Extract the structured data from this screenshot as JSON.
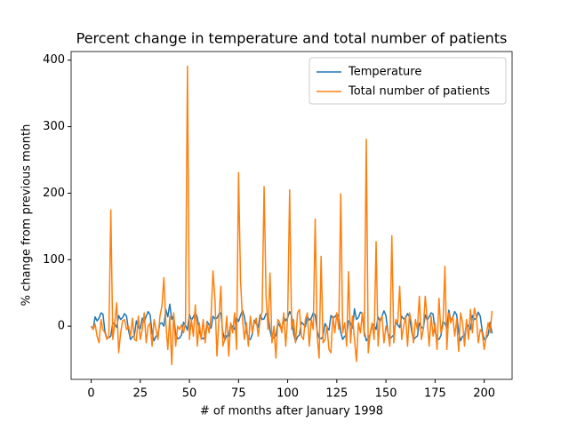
{
  "chart_data": {
    "type": "line",
    "title": "Percent change in temperature and total number of patients",
    "x_label": "# of months after January 1998",
    "y_label": "% change from previous month",
    "xlim": [
      -10.2,
      214.2
    ],
    "ylim": [
      -80,
      413
    ],
    "xticks": [
      0,
      25,
      50,
      75,
      100,
      125,
      150,
      175,
      200
    ],
    "yticks": [
      0,
      100,
      200,
      300,
      400
    ],
    "legend": "upper right",
    "x": [
      0,
      1,
      2,
      3,
      4,
      5,
      6,
      7,
      8,
      9,
      10,
      11,
      12,
      13,
      14,
      15,
      16,
      17,
      18,
      19,
      20,
      21,
      22,
      23,
      24,
      25,
      26,
      27,
      28,
      29,
      30,
      31,
      32,
      33,
      34,
      35,
      36,
      37,
      38,
      39,
      40,
      41,
      42,
      43,
      44,
      45,
      46,
      47,
      48,
      49,
      50,
      51,
      52,
      53,
      54,
      55,
      56,
      57,
      58,
      59,
      60,
      61,
      62,
      63,
      64,
      65,
      66,
      67,
      68,
      69,
      70,
      71,
      72,
      73,
      74,
      75,
      76,
      77,
      78,
      79,
      80,
      81,
      82,
      83,
      84,
      85,
      86,
      87,
      88,
      89,
      90,
      91,
      92,
      93,
      94,
      95,
      96,
      97,
      98,
      99,
      100,
      101,
      102,
      103,
      104,
      105,
      106,
      107,
      108,
      109,
      110,
      111,
      112,
      113,
      114,
      115,
      116,
      117,
      118,
      119,
      120,
      121,
      122,
      123,
      124,
      125,
      126,
      127,
      128,
      129,
      130,
      131,
      132,
      133,
      134,
      135,
      136,
      137,
      138,
      139,
      140,
      141,
      142,
      143,
      144,
      145,
      146,
      147,
      148,
      149,
      150,
      151,
      152,
      153,
      154,
      155,
      156,
      157,
      158,
      159,
      160,
      161,
      162,
      163,
      164,
      165,
      166,
      167,
      168,
      169,
      170,
      171,
      172,
      173,
      174,
      175,
      176,
      177,
      178,
      179,
      180,
      181,
      182,
      183,
      184,
      185,
      186,
      187,
      188,
      189,
      190,
      191,
      192,
      193,
      194,
      195,
      196,
      197,
      198,
      199,
      200,
      201,
      202,
      203,
      204
    ],
    "series": [
      {
        "name": "Temperature",
        "color": "#1f77b4",
        "values": [
          0,
          -5,
          14,
          8,
          12,
          20,
          18,
          -8,
          -18,
          -17,
          -15,
          5,
          3,
          -2,
          16,
          10,
          13,
          19,
          15,
          -6,
          -20,
          -16,
          -14,
          8,
          -2,
          -4,
          12,
          6,
          15,
          22,
          17,
          -10,
          -22,
          -15,
          -12,
          4,
          5,
          0,
          25,
          14,
          33,
          10,
          16,
          -12,
          -19,
          -18,
          -13,
          6,
          1,
          -6,
          18,
          9,
          14,
          21,
          13,
          -7,
          -17,
          -19,
          -16,
          7,
          2,
          -3,
          15,
          11,
          12,
          18,
          20,
          -9,
          -21,
          -14,
          -15,
          3,
          -1,
          -5,
          13,
          7,
          16,
          24,
          14,
          -8,
          -18,
          -20,
          -12,
          9,
          4,
          -2,
          17,
          10,
          11,
          19,
          18,
          -6,
          -19,
          -17,
          -14,
          5,
          0,
          -4,
          14,
          8,
          13,
          22,
          16,
          -11,
          -23,
          -16,
          -13,
          6,
          3,
          -1,
          15,
          9,
          12,
          20,
          17,
          -7,
          -18,
          -19,
          -15,
          4,
          -2,
          -6,
          16,
          12,
          14,
          18,
          15,
          -9,
          -20,
          -15,
          -14,
          8,
          5,
          -3,
          26,
          10,
          13,
          21,
          19,
          -8,
          -22,
          -18,
          -12,
          3,
          1,
          -5,
          14,
          7,
          15,
          23,
          16,
          -10,
          -19,
          -16,
          -13,
          6,
          2,
          -2,
          15,
          11,
          12,
          19,
          14,
          -6,
          -21,
          -17,
          -15,
          5,
          -1,
          -4,
          17,
          9,
          14,
          20,
          18,
          -8,
          -18,
          -20,
          -14,
          7,
          4,
          -3,
          24,
          8,
          13,
          22,
          17,
          -9,
          -22,
          -15,
          -16,
          4,
          0,
          -5,
          16,
          10,
          12,
          21,
          15,
          -7,
          -20,
          -18,
          -13,
          6,
          -11
        ]
      },
      {
        "name": "Total number of patients",
        "color": "#ff7f0e",
        "values": [
          0,
          -5,
          3,
          -15,
          -25,
          10,
          -5,
          -10,
          -20,
          -15,
          175,
          -20,
          5,
          35,
          -40,
          -10,
          8,
          10,
          -5,
          0,
          -15,
          12,
          -20,
          -22,
          15,
          -20,
          -5,
          20,
          -25,
          0,
          5,
          -30,
          10,
          -5,
          -20,
          15,
          30,
          73,
          5,
          -35,
          15,
          -58,
          20,
          -30,
          0,
          -5,
          2,
          -10,
          5,
          391,
          -20,
          10,
          -15,
          32,
          -30,
          5,
          -20,
          10,
          -25,
          5,
          -10,
          15,
          83,
          40,
          -45,
          10,
          60,
          -30,
          -20,
          15,
          -45,
          5,
          -10,
          20,
          -35,
          231,
          70,
          10,
          -20,
          5,
          -30,
          15,
          -10,
          5,
          12,
          -15,
          10,
          22,
          210,
          45,
          -5,
          80,
          -25,
          0,
          -48,
          10,
          5,
          -10,
          20,
          -30,
          15,
          205,
          -5,
          10,
          -25,
          20,
          25,
          -15,
          -20,
          10,
          20,
          -30,
          10,
          -5,
          161,
          -15,
          -48,
          105,
          -25,
          -20,
          0,
          -35,
          -40,
          15,
          -10,
          20,
          -5,
          199,
          -10,
          5,
          -30,
          82,
          -25,
          15,
          -20,
          -53,
          5,
          -10,
          20,
          -15,
          281,
          -40,
          -10,
          5,
          -20,
          127,
          -30,
          10,
          15,
          -25,
          0,
          -10,
          -30,
          136,
          -25,
          10,
          5,
          60,
          -20,
          0,
          15,
          -30,
          20,
          5,
          -25,
          10,
          -5,
          45,
          -20,
          -5,
          45,
          10,
          -30,
          15,
          -15,
          5,
          -35,
          42,
          -10,
          0,
          90,
          -35,
          20,
          5,
          15,
          -15,
          10,
          -38,
          20,
          5,
          -30,
          10,
          -20,
          25,
          -10,
          27,
          15,
          -25,
          -5,
          -10,
          -35,
          -15,
          5,
          -10,
          23
        ]
      }
    ]
  }
}
